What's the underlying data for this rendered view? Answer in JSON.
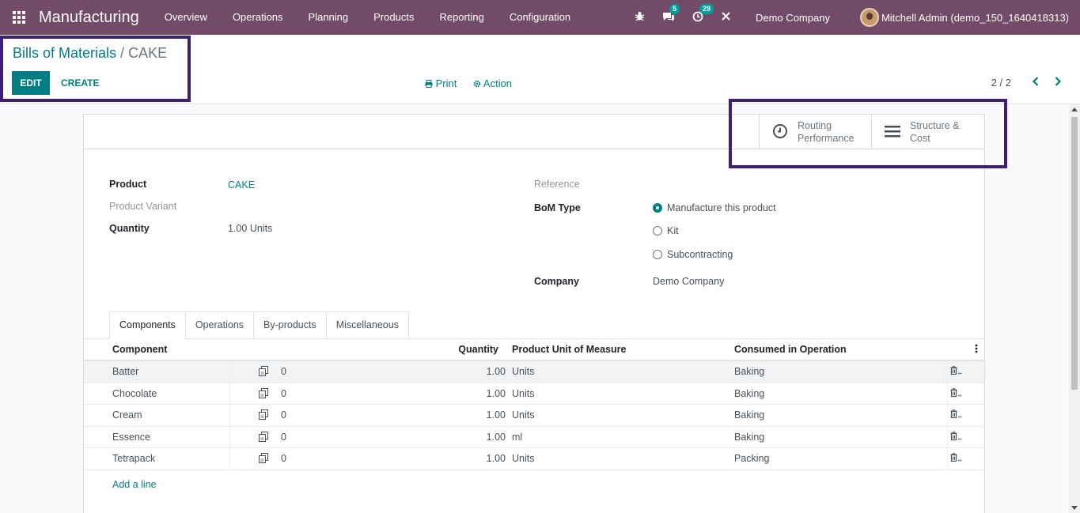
{
  "navbar": {
    "app_title": "Manufacturing",
    "menu": [
      "Overview",
      "Operations",
      "Planning",
      "Products",
      "Reporting",
      "Configuration"
    ],
    "messages_count": "5",
    "activities_count": "29",
    "company": "Demo Company",
    "user": "Mitchell Admin (demo_150_1640418313)"
  },
  "control_panel": {
    "breadcrumb_parent": "Bills of Materials",
    "breadcrumb_sep": " / ",
    "breadcrumb_current": "CAKE",
    "edit_label": "EDIT",
    "create_label": "CREATE",
    "print_label": "Print",
    "action_label": "Action",
    "pager": "2 / 2"
  },
  "smart_buttons": {
    "routing_line1": "Routing",
    "routing_line2": "Performance",
    "structure_line1": "Structure &",
    "structure_line2": "Cost"
  },
  "form": {
    "product_label": "Product",
    "product_value": "CAKE",
    "variant_label": "Product Variant",
    "quantity_label": "Quantity",
    "quantity_value": "1.00",
    "quantity_uom": "Units",
    "reference_label": "Reference",
    "bom_type_label": "BoM Type",
    "bom_types": [
      "Manufacture this product",
      "Kit",
      "Subcontracting"
    ],
    "bom_type_selected": "Manufacture this product",
    "company_label": "Company",
    "company_value": "Demo Company"
  },
  "tabs": [
    "Components",
    "Operations",
    "By-products",
    "Miscellaneous"
  ],
  "active_tab": "Components",
  "components_table": {
    "headers": {
      "component": "Component",
      "quantity": "Quantity",
      "uom": "Product Unit of Measure",
      "operation": "Consumed in Operation"
    },
    "rows": [
      {
        "component": "Batter",
        "attachments": "0",
        "quantity": "1.00",
        "uom": "Units",
        "operation": "Baking"
      },
      {
        "component": "Chocolate",
        "attachments": "0",
        "quantity": "1.00",
        "uom": "Units",
        "operation": "Baking"
      },
      {
        "component": "Cream",
        "attachments": "0",
        "quantity": "1.00",
        "uom": "Units",
        "operation": "Baking"
      },
      {
        "component": "Essence",
        "attachments": "0",
        "quantity": "1.00",
        "uom": "ml",
        "operation": "Baking"
      },
      {
        "component": "Tetrapack",
        "attachments": "0",
        "quantity": "1.00",
        "uom": "Units",
        "operation": "Packing"
      }
    ],
    "add_line_label": "Add a line"
  }
}
